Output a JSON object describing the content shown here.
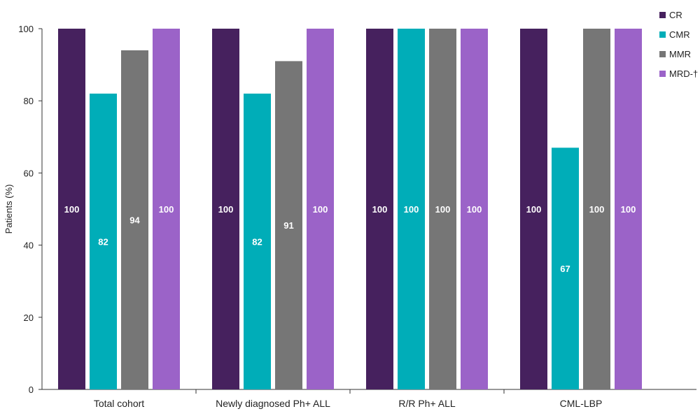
{
  "chart_data": {
    "type": "bar",
    "title": "",
    "xlabel": "",
    "ylabel": "Patients (%)",
    "ylim": [
      0,
      100
    ],
    "yticks": [
      0,
      20,
      40,
      60,
      80,
      100
    ],
    "grid": false,
    "legend_position": "top-right",
    "categories": [
      "Total cohort",
      "Newly diagnosed Ph+ ALL",
      "R/R Ph+ ALL",
      "CML-LBP"
    ],
    "series": [
      {
        "name": "CR",
        "color": "#46215e",
        "values": [
          100,
          100,
          100,
          100
        ]
      },
      {
        "name": "CMR",
        "color": "#00adb8",
        "values": [
          82,
          82,
          100,
          67
        ]
      },
      {
        "name": "MMR",
        "color": "#767676",
        "values": [
          94,
          91,
          100,
          100
        ]
      },
      {
        "name": "MRD-†",
        "color": "#9b63c8",
        "values": [
          100,
          100,
          100,
          100
        ]
      }
    ]
  }
}
